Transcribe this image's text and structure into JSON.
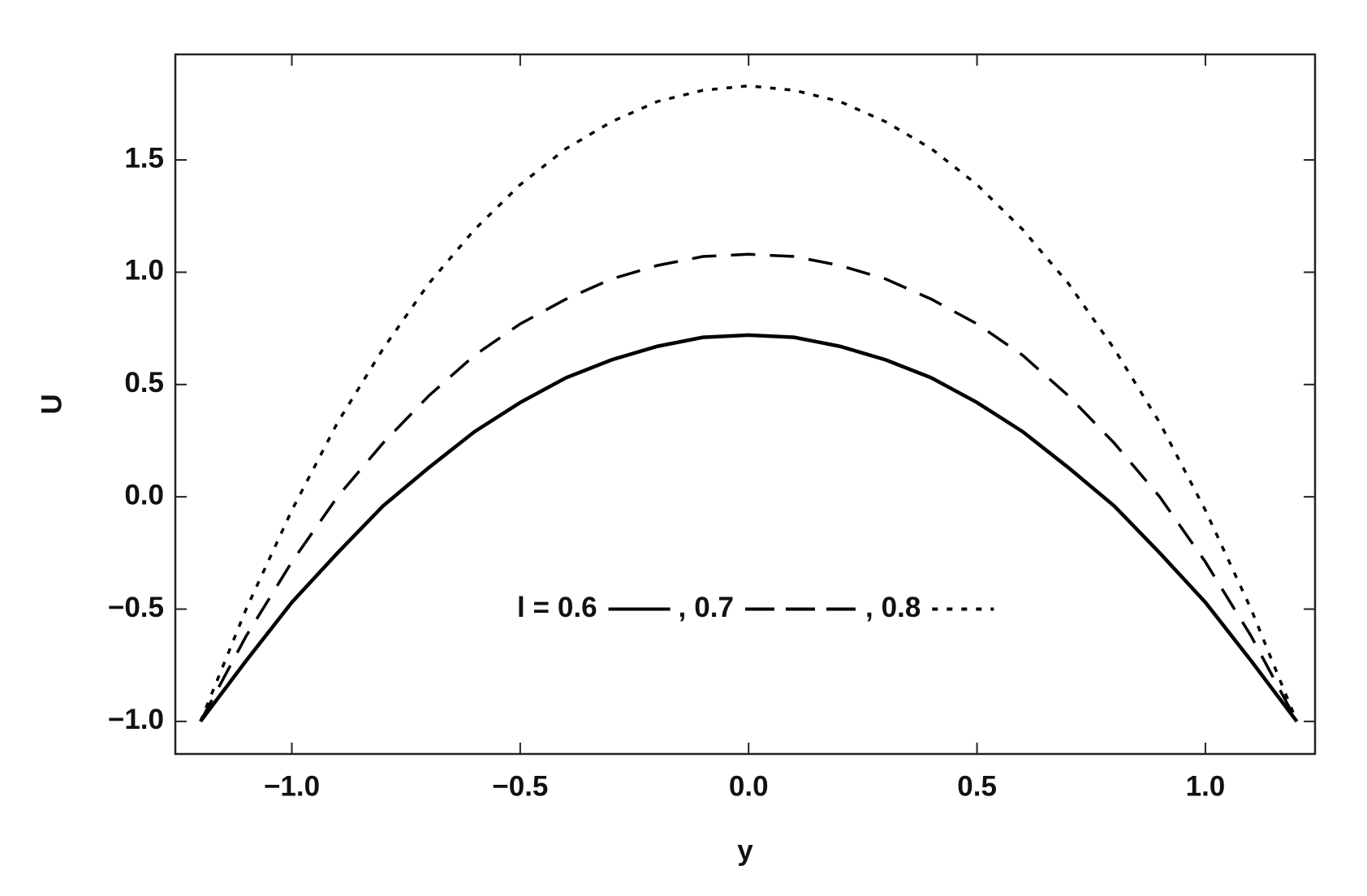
{
  "chart_data": {
    "type": "line",
    "x_label": "y",
    "y_label": "U",
    "x": [
      -1.2,
      -1.1,
      -1.0,
      -0.9,
      -0.8,
      -0.7,
      -0.6,
      -0.5,
      -0.4,
      -0.3,
      -0.2,
      -0.1,
      0.0,
      0.1,
      0.2,
      0.3,
      0.4,
      0.5,
      0.6,
      0.7,
      0.8,
      0.9,
      1.0,
      1.1,
      1.2
    ],
    "series": [
      {
        "name": "0.6",
        "color": "#000000",
        "dash": "solid",
        "values": [
          -1.0,
          -0.73,
          -0.47,
          -0.25,
          -0.04,
          0.13,
          0.29,
          0.42,
          0.53,
          0.61,
          0.67,
          0.71,
          0.72,
          0.71,
          0.67,
          0.61,
          0.53,
          0.42,
          0.29,
          0.13,
          -0.04,
          -0.25,
          -0.47,
          -0.73,
          -1.0
        ]
      },
      {
        "name": "0.7",
        "color": "#000000",
        "dash": "dashed",
        "values": [
          -1.0,
          -0.62,
          -0.29,
          0.0,
          0.24,
          0.45,
          0.63,
          0.77,
          0.88,
          0.97,
          1.03,
          1.07,
          1.08,
          1.07,
          1.03,
          0.97,
          0.88,
          0.77,
          0.63,
          0.45,
          0.24,
          0.0,
          -0.29,
          -0.62,
          -1.0
        ]
      },
      {
        "name": "0.8",
        "color": "#000000",
        "dash": "dotted",
        "values": [
          -1.0,
          -0.5,
          -0.06,
          0.33,
          0.66,
          0.95,
          1.19,
          1.39,
          1.55,
          1.67,
          1.76,
          1.81,
          1.83,
          1.81,
          1.76,
          1.67,
          1.55,
          1.39,
          1.19,
          0.95,
          0.66,
          0.33,
          -0.06,
          -0.5,
          -1.0
        ]
      }
    ],
    "legend_label": "l =",
    "legend_separator": ",",
    "xlim": [
      -1.255,
      1.24
    ],
    "ylim": [
      -1.145,
      1.97
    ],
    "xticks": [
      {
        "value": -1.0,
        "label": "−1.0"
      },
      {
        "value": -0.5,
        "label": "−0.5"
      },
      {
        "value": 0.0,
        "label": "0.0"
      },
      0.5,
      {
        "value": 1.0,
        "label": "1.0"
      }
    ],
    "yticks": [
      {
        "value": -1.0,
        "label": "−1.0"
      },
      {
        "value": -0.5,
        "label": "−0.5"
      },
      {
        "value": 0.0,
        "label": "0.0"
      },
      0.5,
      {
        "value": 1.0,
        "label": "1.0"
      },
      1.5
    ],
    "grid": false
  }
}
